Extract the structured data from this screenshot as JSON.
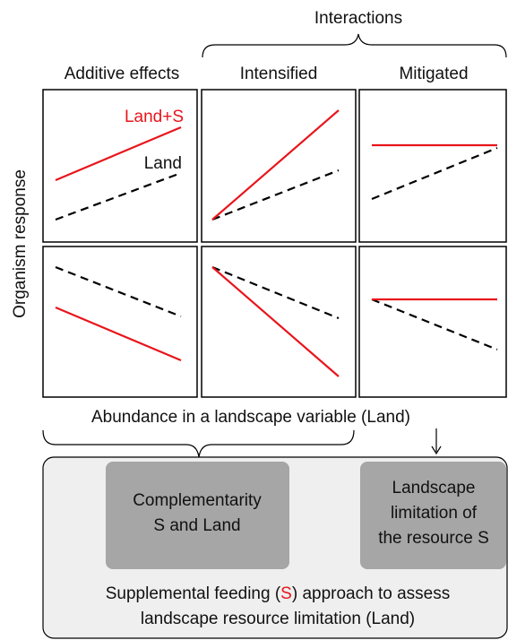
{
  "header": {
    "title": "Interactions"
  },
  "columns": [
    "Additive effects",
    "Intensified",
    "Mitigated"
  ],
  "legend": {
    "combined": "Land+S",
    "single": "Land"
  },
  "y_axis": {
    "label": "Organism response"
  },
  "x_axis": {
    "label": "Abundance in a landscape variable (Land)"
  },
  "boxes": [
    {
      "lines": [
        "Complementarity",
        "S and Land"
      ]
    },
    {
      "lines": [
        "Landscape",
        "limitation of",
        "the resource S"
      ]
    }
  ],
  "footer": {
    "line1": [
      "Supplemental feeding (",
      "S",
      ") approach to assess"
    ],
    "line2": "landscape resource limitation (Land)"
  }
}
